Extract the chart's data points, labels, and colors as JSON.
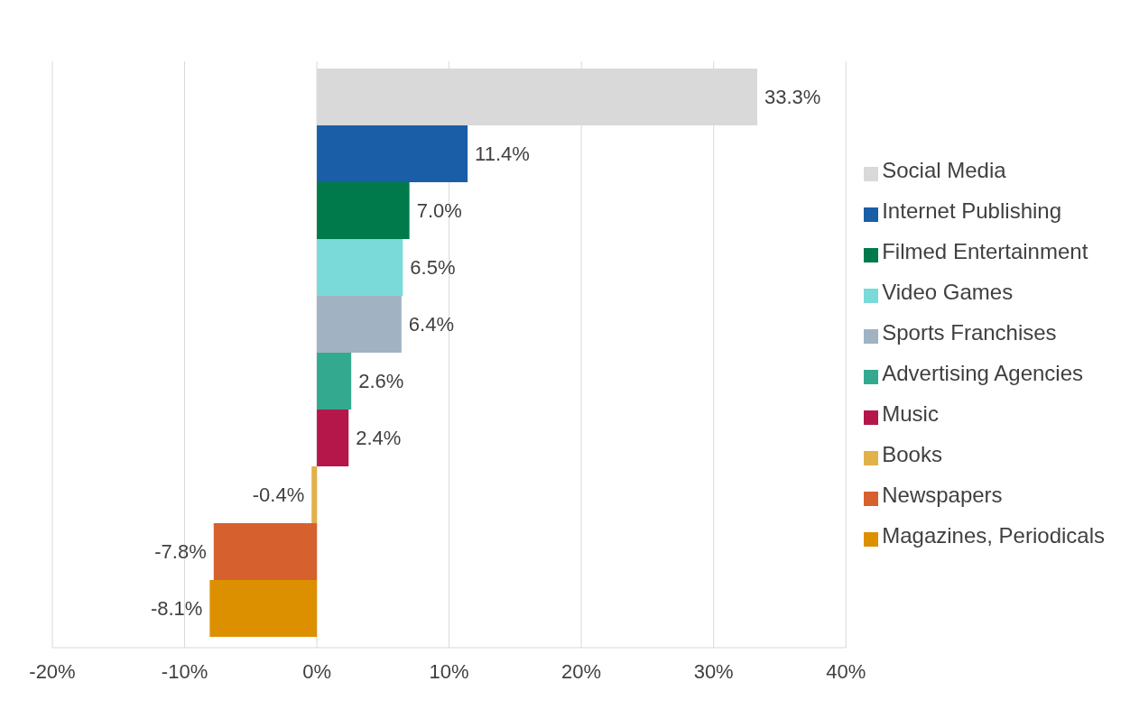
{
  "chart_data": {
    "type": "bar",
    "orientation": "horizontal",
    "categories": [
      null
    ],
    "series": [
      {
        "name": "Social Media",
        "color": "#d9d9d9",
        "values": [
          33.3
        ],
        "value_labels": [
          "33.3%"
        ]
      },
      {
        "name": "Internet Publishing",
        "color": "#1a5ea8",
        "values": [
          11.4
        ],
        "value_labels": [
          "11.4%"
        ]
      },
      {
        "name": "Filmed Entertainment",
        "color": "#007a4a",
        "values": [
          7.0
        ],
        "value_labels": [
          "7.0%"
        ]
      },
      {
        "name": "Video Games",
        "color": "#7ad9d9",
        "values": [
          6.5
        ],
        "value_labels": [
          "6.5%"
        ]
      },
      {
        "name": "Sports Franchises",
        "color": "#a1b3c2",
        "values": [
          6.4
        ],
        "value_labels": [
          "6.4%"
        ]
      },
      {
        "name": "Advertising Agencies",
        "color": "#33aa90",
        "values": [
          2.6
        ],
        "value_labels": [
          "2.6%"
        ]
      },
      {
        "name": "Music",
        "color": "#b5174a",
        "values": [
          2.4
        ],
        "value_labels": [
          "2.4%"
        ]
      },
      {
        "name": "Books",
        "color": "#e3b14a",
        "values": [
          -0.4
        ],
        "value_labels": [
          "-0.4%"
        ]
      },
      {
        "name": "Newspapers",
        "color": "#d6602e",
        "values": [
          -7.8
        ],
        "value_labels": [
          "-7.8%"
        ]
      },
      {
        "name": "Magazines, Periodicals",
        "color": "#dc9000",
        "values": [
          -8.1
        ],
        "value_labels": [
          "-8.1%"
        ]
      }
    ],
    "xlim": [
      -20,
      40
    ],
    "xticks": [
      {
        "value": -20,
        "label": "-20%"
      },
      {
        "value": -10,
        "label": "-10%"
      },
      {
        "value": 0,
        "label": "0%"
      },
      {
        "value": 10,
        "label": "10%"
      },
      {
        "value": 20,
        "label": "20%"
      },
      {
        "value": 30,
        "label": "30%"
      },
      {
        "value": 40,
        "label": "40%"
      }
    ],
    "grid": "x",
    "legend": "right"
  }
}
